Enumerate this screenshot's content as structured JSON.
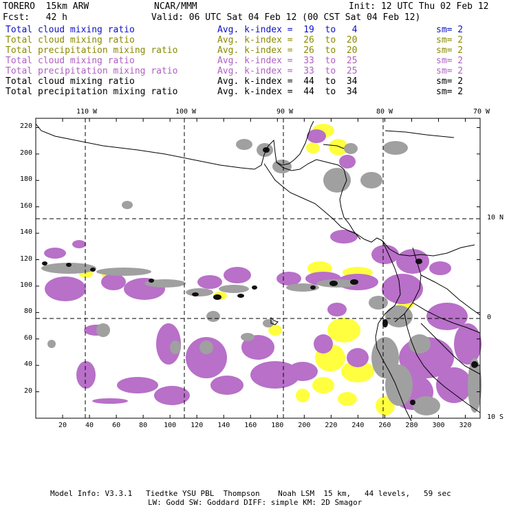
{
  "header": {
    "model": "TORERO  15km ARW",
    "center": "NCAR/MMM",
    "init": "Init: 12 UTC Thu 02 Feb 12",
    "fcst": "Fcst:   42 h",
    "valid": "Valid: 06 UTC Sat 04 Feb 12 (00 CST Sat 04 Feb 12)"
  },
  "legend": [
    {
      "field": "Total cloud mixing ratio",
      "index": "Avg. k-index =  19  to   4",
      "sm": "sm= 2",
      "color": "#1010c8"
    },
    {
      "field": "Total cloud mixing ratio",
      "index": "Avg. k-index =  26  to  20",
      "sm": "sm= 2",
      "color": "#8a8a00"
    },
    {
      "field": "Total precipitation mixing ratio",
      "index": "Avg. k-index =  26  to  20",
      "sm": "sm= 2",
      "color": "#8a8a00"
    },
    {
      "field": "Total cloud mixing ratio",
      "index": "Avg. k-index =  33  to  25",
      "sm": "sm= 2",
      "color": "#b060c0"
    },
    {
      "field": "Total precipitation mixing ratio",
      "index": "Avg. k-index =  33  to  25",
      "sm": "sm= 2",
      "color": "#b060c0"
    },
    {
      "field": "Total cloud mixing ratio",
      "index": "Avg. k-index =  44  to  34",
      "sm": "sm= 2",
      "color": "#000000"
    },
    {
      "field": "Total precipitation mixing ratio",
      "index": "Avg. k-index =  44  to  34",
      "sm": "sm= 2",
      "color": "#000000"
    }
  ],
  "map": {
    "lon_labels": [
      "110 W",
      "100 W",
      "90 W",
      "80 W",
      "70 W"
    ],
    "lat_labels": [
      "10 N",
      "0",
      "10 S"
    ],
    "x_ticks": [
      "20",
      "40",
      "60",
      "80",
      "100",
      "120",
      "140",
      "160",
      "180",
      "200",
      "220",
      "240",
      "260",
      "280",
      "300",
      "320"
    ],
    "y_ticks": [
      "220",
      "200",
      "180",
      "160",
      "140",
      "120",
      "100",
      "80",
      "60",
      "40",
      "20"
    ],
    "colors": {
      "frame": "#000000",
      "grid": "#000000",
      "coast": "#000000",
      "cloud_low": "#ffff40",
      "cloud_mid": "#b870c8",
      "precip": "#a0a0a0",
      "precip_dark": "#404040",
      "precip_core": "#101010"
    }
  },
  "footer": {
    "line1": "Model Info: V3.3.1   Tiedtke YSU PBL  Thompson    Noah LSM  15 km,   44 levels,   59 sec",
    "line2": "LW: Godd SW: Goddard DIFF: simple KM: 2D Smagor"
  }
}
